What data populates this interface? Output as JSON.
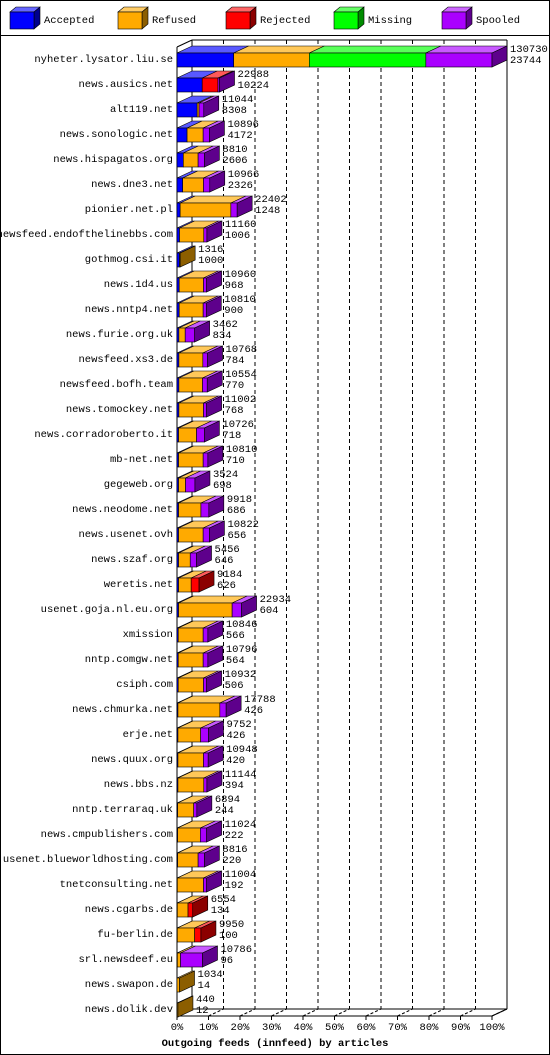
{
  "chart_data": {
    "type": "bar3d-stacked-horizontal",
    "title": "Outgoing feeds (innfeed) by articles",
    "categories": [
      "nyheter.lysator.liu.se",
      "news.ausics.net",
      "alt119.net",
      "news.sonologic.net",
      "news.hispagatos.org",
      "news.dne3.net",
      "pionier.net.pl",
      "newsfeed.endofthelinebbs.com",
      "gothmog.csi.it",
      "news.1d4.us",
      "news.nntp4.net",
      "news.furie.org.uk",
      "newsfeed.xs3.de",
      "newsfeed.bofh.team",
      "news.tomockey.net",
      "news.corradoroberto.it",
      "mb-net.net",
      "gegeweb.org",
      "news.neodome.net",
      "news.usenet.ovh",
      "news.szaf.org",
      "weretis.net",
      "usenet.goja.nl.eu.org",
      "xmission",
      "nntp.comgw.net",
      "csiph.com",
      "news.chmurka.net",
      "erje.net",
      "news.quux.org",
      "news.bbs.nz",
      "nntp.terraraq.uk",
      "news.cmpublishers.com",
      "usenet.blueworldhosting.com",
      "tnetconsulting.net",
      "news.cgarbs.de",
      "fu-berlin.de",
      "srl.newsdeef.eu",
      "news.swapon.de",
      "news.dolik.dev"
    ],
    "series": [
      {
        "name": "Accepted",
        "color": "#0000ff",
        "values": [
          18,
          8,
          6.4,
          3.2,
          2.0,
          1.8,
          1.0,
          0.8,
          0.8,
          0.7,
          0.7,
          0.6,
          0.6,
          0.6,
          0.6,
          0.5,
          0.5,
          0.5,
          0.5,
          0.5,
          0.5,
          0.5,
          0.5,
          0.4,
          0.4,
          0.4,
          0.3,
          0.3,
          0.3,
          0.3,
          0.2,
          0.2,
          0.2,
          0.1,
          0.1,
          0.1,
          0.1,
          0,
          0
        ]
      },
      {
        "name": "Refused",
        "color": "#ffaa00",
        "values": [
          24,
          0,
          0.6,
          5.1,
          4.7,
          6.6,
          16.1,
          7.7,
          0.2,
          7.7,
          7.6,
          2,
          7.6,
          7.5,
          7.8,
          5.7,
          7.8,
          2.2,
          7.1,
          7.8,
          3.7,
          4,
          17,
          7.9,
          7.9,
          8,
          13.3,
          7.2,
          8.1,
          8.2,
          5.1,
          7.2,
          6.5,
          8.3,
          3.4,
          5.5,
          1,
          0.8,
          0.3
        ]
      },
      {
        "name": "Rejected",
        "color": "#ff0000",
        "values": [
          0,
          5,
          0,
          0,
          0,
          0,
          0,
          0,
          0,
          0,
          0,
          0,
          0,
          0,
          0,
          0,
          0,
          0,
          0,
          0,
          0,
          2.5,
          0,
          0,
          0,
          0,
          0,
          0,
          0,
          0,
          0,
          0,
          0,
          0,
          1.5,
          2,
          0,
          0,
          0
        ]
      },
      {
        "name": "Missing",
        "color": "#00ff00",
        "values": [
          37,
          0,
          0,
          0,
          0,
          0,
          0,
          0,
          0,
          0,
          0,
          0,
          0,
          0,
          0,
          0,
          0,
          0,
          0,
          0,
          0,
          0,
          0,
          0,
          0,
          0,
          0,
          0,
          0,
          0,
          0,
          0,
          0,
          0,
          0,
          0,
          0,
          0,
          0
        ]
      },
      {
        "name": "Spooled",
        "color": "#aa00ff",
        "values": [
          21,
          0.5,
          1.5,
          2,
          2,
          2,
          2,
          1,
          0,
          1,
          1,
          3,
          1.5,
          1.5,
          1,
          2.5,
          1.5,
          3,
          2.5,
          2,
          2,
          0,
          3,
          1.5,
          1.5,
          1,
          2,
          2.5,
          1.5,
          1,
          1,
          2,
          2,
          1,
          0,
          0,
          7,
          0,
          0
        ]
      }
    ],
    "bar_labels": [
      [
        130730,
        23744
      ],
      [
        22988,
        10224
      ],
      [
        11044,
        8308
      ],
      [
        10896,
        4172
      ],
      [
        8810,
        2606
      ],
      [
        10966,
        2326
      ],
      [
        22402,
        1248
      ],
      [
        11160,
        1006
      ],
      [
        1316,
        1000
      ],
      [
        10960,
        968
      ],
      [
        10810,
        900
      ],
      [
        3462,
        834
      ],
      [
        10768,
        784
      ],
      [
        10554,
        770
      ],
      [
        11002,
        768
      ],
      [
        10726,
        718
      ],
      [
        10810,
        710
      ],
      [
        3524,
        698
      ],
      [
        9918,
        686
      ],
      [
        10822,
        656
      ],
      [
        5456,
        646
      ],
      [
        9184,
        626
      ],
      [
        22934,
        604
      ],
      [
        10846,
        566
      ],
      [
        10796,
        564
      ],
      [
        10932,
        506
      ],
      [
        17788,
        426
      ],
      [
        9752,
        426
      ],
      [
        10948,
        420
      ],
      [
        11144,
        394
      ],
      [
        6894,
        244
      ],
      [
        11024,
        222
      ],
      [
        8816,
        220
      ],
      [
        11004,
        192
      ],
      [
        6554,
        134
      ],
      [
        9950,
        100
      ],
      [
        10786,
        96
      ],
      [
        1034,
        14
      ],
      [
        440,
        12
      ]
    ],
    "xlim": [
      0,
      100
    ],
    "xticks": [
      {
        "value": 0,
        "label": "0%"
      },
      {
        "value": 10,
        "label": "10%"
      },
      {
        "value": 20,
        "label": "20%"
      },
      {
        "value": 30,
        "label": "30%"
      },
      {
        "value": 40,
        "label": "40%"
      },
      {
        "value": 50,
        "label": "50%"
      },
      {
        "value": 60,
        "label": "60%"
      },
      {
        "value": 70,
        "label": "70%"
      },
      {
        "value": 80,
        "label": "80%"
      },
      {
        "value": 90,
        "label": "90%"
      },
      {
        "value": 100,
        "label": "100%"
      }
    ],
    "grid": true
  }
}
